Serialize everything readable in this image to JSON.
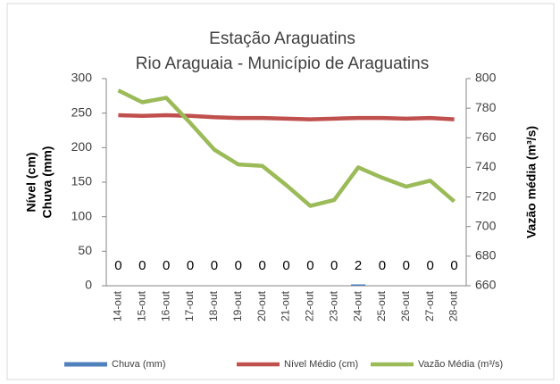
{
  "chart_data": {
    "type": "combo",
    "title": "Estação Araguatins",
    "subtitle": "Rio Araguaia - Município de Araguatins",
    "ylabel": [
      "Nível (cm)",
      "Chuva (mm)"
    ],
    "y2label": "Vazão média (m³/s)",
    "categories": [
      "14-out",
      "15-out",
      "16-out",
      "17-out",
      "18-out",
      "19-out",
      "20-out",
      "21-out",
      "22-out",
      "23-out",
      "24-out",
      "25-out",
      "26-out",
      "27-out",
      "28-out"
    ],
    "ylim": [
      0,
      300
    ],
    "yticks": [
      0,
      50,
      100,
      150,
      200,
      250,
      300
    ],
    "y2lim": [
      660,
      800
    ],
    "y2ticks": [
      660,
      680,
      700,
      720,
      740,
      760,
      780,
      800
    ],
    "legend": "bottom",
    "series": [
      {
        "name": "Chuva (mm)",
        "type": "bar",
        "color": "#4f81bd",
        "data_labels": true,
        "values": [
          0,
          0,
          0,
          0,
          0,
          0,
          0,
          0,
          0,
          0,
          2,
          0,
          0,
          0,
          0
        ]
      },
      {
        "name": "Nível Médio (cm)",
        "type": "line",
        "color": "#c0504d",
        "values": [
          247,
          246,
          247,
          246,
          244,
          243,
          243,
          242,
          241,
          242,
          243,
          243,
          242,
          243,
          241
        ]
      },
      {
        "name": "Vazão Média (m³/s)",
        "type": "line",
        "axis": "y2",
        "color": "#9bbb59",
        "values": [
          792,
          784,
          787,
          770,
          752,
          742,
          741,
          728,
          714,
          718,
          740,
          733,
          727,
          731,
          717
        ]
      }
    ]
  }
}
